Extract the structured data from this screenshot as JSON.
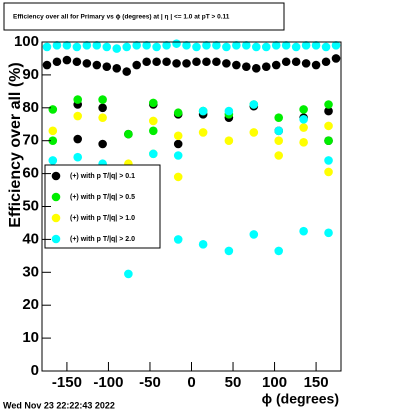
{
  "chart_data": {
    "type": "scatter",
    "title": "Efficiency over all for Primary vs ϕ (degrees) at | η | <= 1.0 at pT > 0.11",
    "y_label": "Efficiency over all (%)",
    "x_label": "ϕ (degrees)",
    "footer": "Wed Nov 23 22:22:43 2022",
    "xlim": [
      -180,
      180
    ],
    "ylim": [
      0,
      100
    ],
    "xticks": [
      -150,
      -100,
      -50,
      0,
      50,
      100,
      150
    ],
    "yticks": [
      0,
      10,
      20,
      30,
      40,
      50,
      60,
      70,
      80,
      90,
      100
    ],
    "series": [
      {
        "name": "(+) with p T/|q| > 0.1",
        "color": "#000000",
        "x": [
          -174,
          -162,
          -150,
          -138,
          -126,
          -114,
          -102,
          -90,
          -78,
          -66,
          -54,
          -42,
          -30,
          -18,
          -6,
          6,
          18,
          30,
          42,
          54,
          66,
          78,
          90,
          102,
          114,
          126,
          138,
          150,
          162,
          174,
          -137,
          -137,
          -107,
          -107,
          -76,
          -46,
          -16,
          -16,
          14,
          45,
          75,
          105,
          135,
          165,
          165
        ],
        "values": [
          93,
          94,
          94.5,
          94,
          93.5,
          93,
          92.5,
          92,
          91,
          93,
          94,
          94,
          94,
          93.5,
          93.5,
          94,
          94,
          94,
          93.5,
          93,
          92.5,
          92,
          92.5,
          93,
          94,
          94,
          93.5,
          93,
          94,
          95,
          81,
          70.5,
          80,
          69,
          72,
          81,
          78,
          69,
          78,
          77,
          80.5,
          73,
          77,
          79,
          70
        ]
      },
      {
        "name": "(+) with p T/|q| > 0.5",
        "color": "#00ee00",
        "x": [
          -167,
          -167,
          -137,
          -107,
          -76,
          -46,
          -46,
          -16,
          14,
          45,
          75,
          105,
          135,
          165,
          165
        ],
        "values": [
          79.5,
          70,
          82.5,
          82.5,
          72,
          81.5,
          73,
          78.5,
          79,
          78,
          81,
          77,
          79.5,
          81,
          70
        ]
      },
      {
        "name": "(+) with p T/|q| > 1.0",
        "color": "#ffff00",
        "x": [
          -167,
          -137,
          -107,
          -76,
          -46,
          -46,
          -16,
          -16,
          14,
          45,
          75,
          105,
          105,
          135,
          135,
          165,
          165
        ],
        "values": [
          73,
          77.5,
          77,
          63,
          76,
          66,
          71.5,
          59,
          72.5,
          70,
          72.5,
          70,
          65.5,
          74,
          69.5,
          74.5,
          60.5
        ]
      },
      {
        "name": "(+) with p T/|q| > 2.0",
        "color": "#00ffff",
        "x": [
          -174,
          -162,
          -150,
          -138,
          -126,
          -114,
          -102,
          -90,
          -78,
          -66,
          -54,
          -42,
          -30,
          -18,
          -6,
          6,
          18,
          30,
          42,
          54,
          66,
          78,
          90,
          102,
          114,
          126,
          138,
          150,
          162,
          174,
          -167,
          -137,
          -107,
          -76,
          -46,
          -16,
          -16,
          14,
          14,
          45,
          45,
          75,
          75,
          105,
          105,
          135,
          135,
          165,
          165
        ],
        "values": [
          98.5,
          99,
          99,
          98.5,
          99,
          99,
          98.5,
          98,
          98.5,
          99,
          99,
          98.5,
          99,
          99.5,
          99,
          98.5,
          99,
          99,
          98.5,
          99,
          99,
          98.5,
          98.5,
          99,
          99,
          98.5,
          99,
          99,
          98.5,
          99,
          64,
          65,
          63,
          29.5,
          66,
          65.5,
          40,
          79,
          38.5,
          79,
          36.5,
          81,
          41.5,
          73,
          36.5,
          76.5,
          42.5,
          64,
          42
        ]
      }
    ]
  }
}
